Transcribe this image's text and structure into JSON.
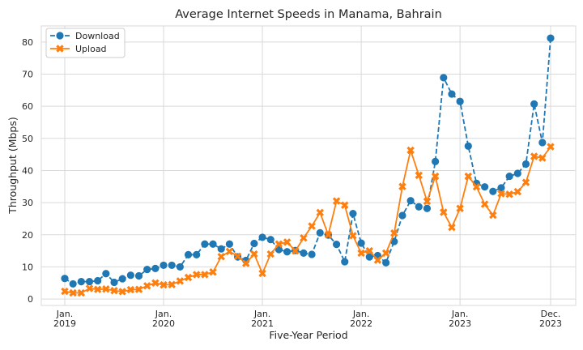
{
  "chart_data": {
    "type": "line",
    "title": "Average Internet Speeds in Manama, Bahrain",
    "xlabel": "Five-Year Period",
    "ylabel": "Throughput (Mbps)",
    "x_start": "2019-01",
    "x_end": "2023-12",
    "ylim": [
      -2,
      85
    ],
    "yticks": [
      0,
      10,
      20,
      30,
      40,
      50,
      60,
      70,
      80
    ],
    "xticks": [
      {
        "month_index": 0,
        "line1": "Jan.",
        "line2": "2019"
      },
      {
        "month_index": 12,
        "line1": "Jan.",
        "line2": "2020"
      },
      {
        "month_index": 24,
        "line1": "Jan.",
        "line2": "2021"
      },
      {
        "month_index": 36,
        "line1": "Jan.",
        "line2": "2022"
      },
      {
        "month_index": 48,
        "line1": "Jan.",
        "line2": "2023"
      },
      {
        "month_index": 59,
        "line1": "Dec.",
        "line2": "2023"
      }
    ],
    "grid": true,
    "legend_position": "top-left",
    "series": [
      {
        "name": "Download",
        "color": "#1f77b4",
        "line_style": "dashed",
        "marker": "circle",
        "values": [
          6.4,
          4.7,
          5.4,
          5.4,
          5.7,
          7.9,
          5.2,
          6.3,
          7.4,
          7.2,
          9.2,
          9.5,
          10.5,
          10.5,
          10.0,
          13.8,
          13.8,
          17.1,
          17.1,
          15.6,
          17.1,
          13.1,
          12.0,
          17.3,
          19.2,
          18.5,
          15.4,
          14.7,
          15.1,
          14.3,
          13.9,
          20.6,
          19.9,
          17.0,
          11.6,
          26.6,
          17.4,
          13.1,
          13.5,
          11.3,
          17.9,
          26.0,
          30.6,
          28.7,
          28.2,
          42.8,
          68.9,
          63.8,
          61.5,
          47.6,
          36.0,
          34.9,
          33.5,
          34.6,
          38.2,
          39.1,
          42.0,
          60.7,
          48.7,
          81.2
        ]
      },
      {
        "name": "Upload",
        "color": "#ff7f0e",
        "line_style": "solid",
        "marker": "x",
        "values": [
          2.4,
          1.9,
          1.9,
          3.3,
          3.0,
          3.1,
          2.6,
          2.3,
          2.9,
          3.0,
          4.1,
          5.0,
          4.4,
          4.5,
          5.6,
          6.7,
          7.6,
          7.6,
          8.4,
          13.2,
          14.8,
          13.3,
          11.1,
          14.0,
          8.0,
          14.0,
          17.1,
          17.7,
          15.0,
          19.0,
          22.7,
          26.9,
          20.0,
          30.5,
          29.2,
          19.7,
          14.3,
          15.0,
          12.1,
          14.3,
          20.5,
          35.0,
          46.3,
          38.5,
          30.4,
          38.2,
          27.0,
          22.3,
          28.2,
          38.2,
          34.9,
          29.5,
          26.1,
          32.8,
          32.6,
          33.4,
          36.3,
          44.4,
          43.9,
          47.4
        ]
      }
    ]
  }
}
